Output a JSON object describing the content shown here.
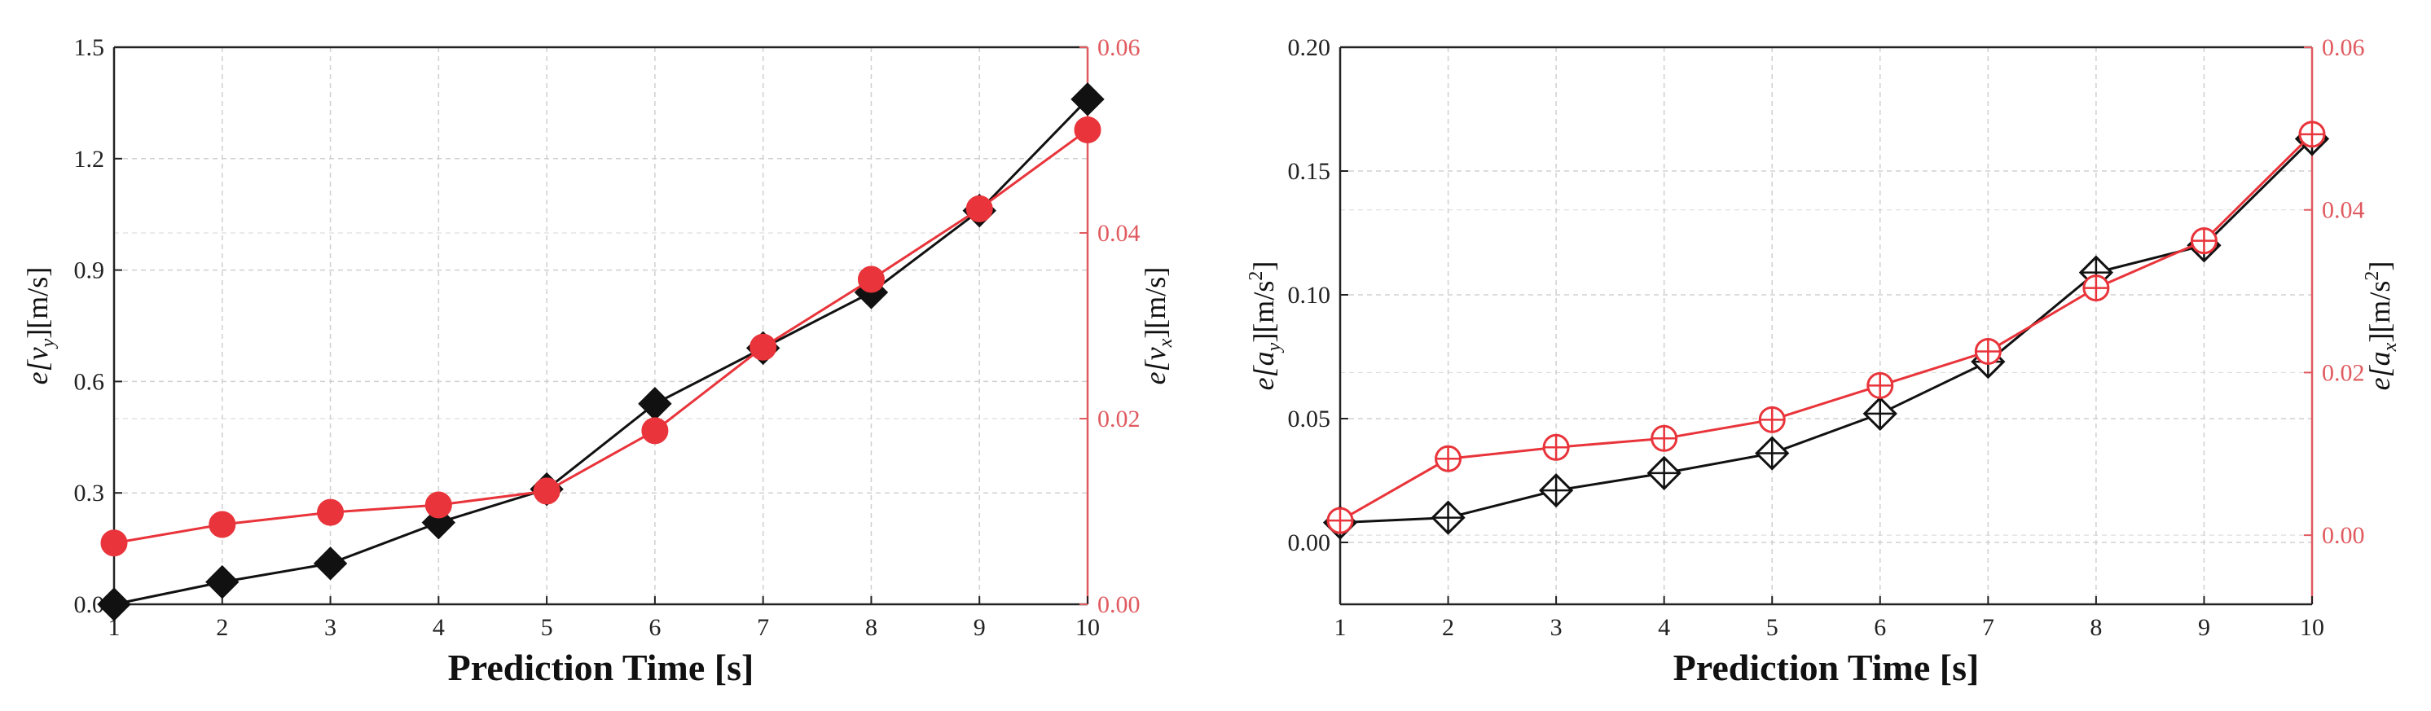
{
  "colors": {
    "black": "#111111",
    "red": "#e8343a",
    "red_axis": "#e05a5f",
    "grid": "#d0d0d0",
    "frame": "#222222"
  },
  "chart_data": [
    {
      "type": "line",
      "xlabel": "Prediction Time [s]",
      "ylabel_left": "e[v_y][m/s]",
      "ylabel_right": "e[v_x][m/s]",
      "xlim": [
        1,
        10
      ],
      "ylim_left": [
        0,
        1.5
      ],
      "ylim_right": [
        0,
        0.06
      ],
      "x_ticks": [
        "1",
        "2",
        "3",
        "4",
        "5",
        "6",
        "7",
        "8",
        "9",
        "10"
      ],
      "y_ticks_left": [
        "0.0",
        "0.3",
        "0.6",
        "0.9",
        "1.2",
        "1.5"
      ],
      "y_ticks_right": [
        "0.00",
        "0.02",
        "0.04",
        "0.06"
      ],
      "grid": true,
      "series": [
        {
          "axis": "left",
          "marker": "filled-diamond",
          "color": "black",
          "x": [
            1,
            2,
            3,
            4,
            5,
            6,
            7,
            8,
            9,
            10
          ],
          "y": [
            0.0,
            0.06,
            0.11,
            0.22,
            0.31,
            0.54,
            0.69,
            0.84,
            1.06,
            1.36
          ]
        },
        {
          "axis": "right",
          "marker": "filled-circle",
          "color": "red",
          "x": [
            1,
            2,
            3,
            4,
            5,
            6,
            7,
            8,
            9,
            10
          ],
          "y": [
            0.0066,
            0.0086,
            0.0099,
            0.0107,
            0.0122,
            0.0187,
            0.0277,
            0.035,
            0.0426,
            0.0511
          ]
        }
      ]
    },
    {
      "type": "line",
      "xlabel": "Prediction Time [s]",
      "ylabel_left": "e[a_y][m/s^2]",
      "ylabel_right": "e[a_x][m/s^2]",
      "xlim": [
        1,
        10
      ],
      "ylim_left": [
        -0.025,
        0.2
      ],
      "ylim_right": [
        -0.0085,
        0.06
      ],
      "x_ticks": [
        "1",
        "2",
        "3",
        "4",
        "5",
        "6",
        "7",
        "8",
        "9",
        "10"
      ],
      "y_ticks_left": [
        "0.00",
        "0.05",
        "0.10",
        "0.15",
        "0.20"
      ],
      "y_ticks_right": [
        "0.00",
        "0.02",
        "0.04",
        "0.06"
      ],
      "grid": true,
      "series": [
        {
          "axis": "left",
          "marker": "crossed-diamond",
          "color": "black",
          "x": [
            1,
            2,
            3,
            4,
            5,
            6,
            7,
            8,
            9,
            10
          ],
          "y": [
            0.008,
            0.01,
            0.021,
            0.028,
            0.036,
            0.052,
            0.073,
            0.109,
            0.12,
            0.163
          ]
        },
        {
          "axis": "right",
          "marker": "crossed-circle",
          "color": "red",
          "x": [
            1,
            2,
            3,
            4,
            5,
            6,
            7,
            8,
            9,
            10
          ],
          "y": [
            0.0018,
            0.0094,
            0.0108,
            0.0119,
            0.0142,
            0.0184,
            0.0226,
            0.0304,
            0.0362,
            0.0493
          ]
        }
      ]
    }
  ]
}
